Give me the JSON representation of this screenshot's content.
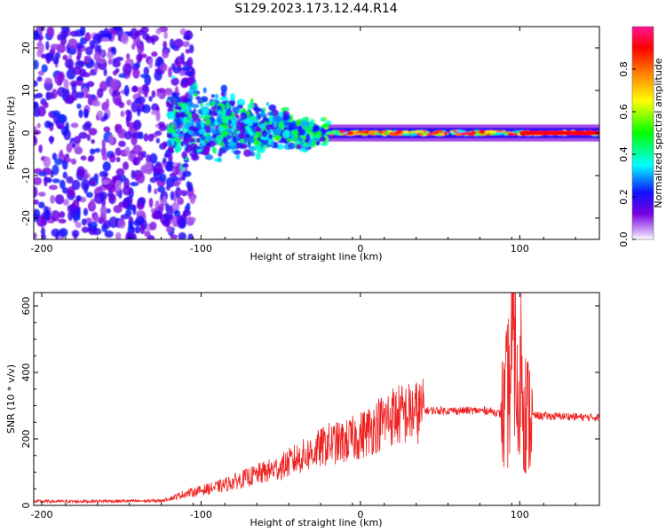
{
  "title": "S129.2023.173.12.44.R14",
  "chart_data": [
    {
      "type": "heatmap",
      "xlabel": "Height of straight line (km)",
      "ylabel": "Frequency (Hz)",
      "xlim": [
        -205,
        150
      ],
      "ylim": [
        -25,
        25
      ],
      "x_ticks": [
        -200,
        -100,
        0,
        100
      ],
      "y_ticks": [
        20,
        10,
        0,
        -10,
        -20
      ],
      "colorbar": {
        "label": "Normalized spectral amplitude",
        "range": [
          0,
          1
        ],
        "ticks": [
          "0.0",
          "0.2",
          "0.4",
          "0.6",
          "0.8"
        ],
        "colors": [
          "#d8b4f8",
          "#7a00e0",
          "#1010ff",
          "#00ffff",
          "#00ff00",
          "#ffff00",
          "#ff8000",
          "#ff0000",
          "#ff1493"
        ]
      },
      "features": [
        {
          "x_range": [
            -205,
            -120
          ],
          "freq_range": [
            -25,
            25
          ],
          "amplitude": 0.15
        },
        {
          "x_range": [
            -120,
            -20
          ],
          "freq_range": [
            -15,
            15
          ],
          "amplitude": 0.3
        },
        {
          "x_range": [
            -20,
            150
          ],
          "freq_range": [
            -1,
            1
          ],
          "amplitude": 0.9
        }
      ]
    },
    {
      "type": "line",
      "xlabel": "Height of straight line (km)",
      "ylabel": "SNR (10 * v/v)",
      "xlim": [
        -205,
        150
      ],
      "ylim": [
        0,
        640
      ],
      "x_ticks": [
        -200,
        -100,
        0,
        100
      ],
      "y_ticks": [
        0,
        200,
        400,
        600
      ],
      "color": "#ee2222",
      "series": [
        {
          "x": [
            -205,
            -180,
            -160,
            -140,
            -125,
            -120,
            -110,
            -100,
            -90,
            -80,
            -70,
            -60,
            -50,
            -40,
            -30,
            -20,
            -10,
            0,
            10,
            20,
            30,
            40,
            50,
            60,
            70,
            80,
            85,
            90,
            93,
            95,
            97,
            99,
            101,
            103,
            105,
            110,
            120,
            130,
            140,
            150
          ],
          "y": [
            12,
            12,
            13,
            13,
            14,
            20,
            35,
            45,
            55,
            70,
            85,
            100,
            115,
            140,
            160,
            185,
            190,
            210,
            240,
            270,
            275,
            285,
            285,
            285,
            285,
            285,
            280,
            270,
            350,
            420,
            630,
            180,
            480,
            290,
            270,
            270,
            268,
            268,
            265,
            265
          ]
        }
      ]
    }
  ]
}
